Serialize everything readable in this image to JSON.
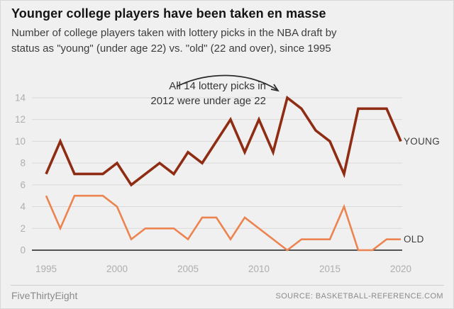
{
  "title": "Younger college players have been taken en masse",
  "subtitle": {
    "line1": "Number of college players taken with lottery picks in the NBA draft by",
    "line2": "status as \"young\" (under age 22) vs. \"old\" (22 and over), since 1995"
  },
  "annotation": {
    "line1": "All 14 lottery picks in",
    "line2": "2012 were under age 22"
  },
  "footer": {
    "brand": "FiveThirtyEight",
    "source": "SOURCE: BASKETBALL-REFERENCE.COM"
  },
  "colors": {
    "background": "#f0f0f0",
    "young_line": "#8f2d14",
    "old_line": "#ec8450",
    "gridline": "#d9d9d9",
    "axis": "#1f1f1f",
    "tick_label": "#aeaeae",
    "annotation_text": "#363636",
    "arrow": "#2b2b2b"
  },
  "chart_data": {
    "type": "line",
    "title": "Younger college players have been taken en masse",
    "xlabel": "",
    "ylabel": "",
    "x": [
      1995,
      1996,
      1997,
      1998,
      1999,
      2000,
      2001,
      2002,
      2003,
      2004,
      2005,
      2006,
      2007,
      2008,
      2009,
      2010,
      2011,
      2012,
      2013,
      2014,
      2015,
      2016,
      2017,
      2018,
      2019,
      2020
    ],
    "series": [
      {
        "name": "YOUNG",
        "color": "#8f2d14",
        "values": [
          7,
          10,
          7,
          7,
          7,
          8,
          6,
          7,
          8,
          7,
          9,
          8,
          10,
          12,
          9,
          12,
          9,
          14,
          13,
          11,
          10,
          7,
          13,
          13,
          13,
          10
        ]
      },
      {
        "name": "OLD",
        "color": "#ec8450",
        "values": [
          5,
          2,
          5,
          5,
          5,
          4,
          1,
          2,
          2,
          2,
          1,
          3,
          3,
          1,
          3,
          2,
          1,
          0,
          1,
          1,
          1,
          4,
          0,
          0,
          1,
          1
        ]
      }
    ],
    "y_ticks": [
      0,
      2,
      4,
      6,
      8,
      10,
      12,
      14
    ],
    "x_ticks": [
      1995,
      2000,
      2005,
      2010,
      2015,
      2020
    ],
    "ylim": [
      0,
      14
    ],
    "grid": true,
    "legend_position": "right of line ends",
    "annotation": "All 14 lottery picks in 2012 were under age 22 (arrow points to 2012 peak of YOUNG line)"
  }
}
